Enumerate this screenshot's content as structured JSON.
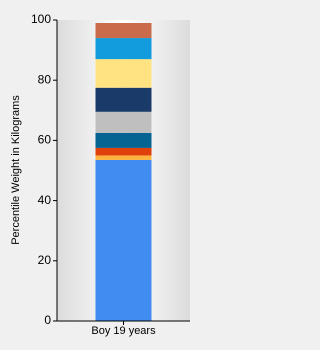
{
  "chart_data": {
    "type": "stacked_bar",
    "y_label": "Percentile Weight in Kilograms",
    "categories": [
      "Boy 19 years"
    ],
    "series": [
      {
        "color": "#418cf0",
        "values": [
          53.5
        ]
      },
      {
        "color": "#fcb441",
        "values": [
          1.5
        ]
      },
      {
        "color": "#e0400a",
        "values": [
          2.5
        ]
      },
      {
        "color": "#056492",
        "values": [
          5
        ]
      },
      {
        "color": "#bfbfbf",
        "values": [
          7
        ]
      },
      {
        "color": "#1a3b69",
        "values": [
          8
        ]
      },
      {
        "color": "#ffe382",
        "values": [
          9.5
        ]
      },
      {
        "color": "#129cdd",
        "values": [
          7
        ]
      },
      {
        "color": "#ca6b4b",
        "values": [
          5
        ]
      }
    ],
    "ylim": [
      0,
      100
    ],
    "yticks": [
      0,
      20,
      40,
      60,
      80,
      100
    ],
    "grid": false
  }
}
